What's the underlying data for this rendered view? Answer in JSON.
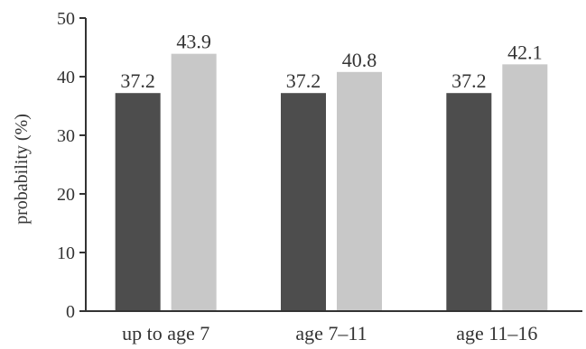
{
  "chart_data": {
    "type": "bar",
    "title": "",
    "xlabel": "",
    "ylabel": "probability (%)",
    "ylim": [
      0,
      50
    ],
    "yticks": [
      0,
      10,
      20,
      30,
      40,
      50
    ],
    "categories": [
      "up to age 7",
      "age 7–11",
      "age 11–16"
    ],
    "series": [
      {
        "values": [
          37.2,
          37.2,
          37.2
        ],
        "color": "#4d4d4d"
      },
      {
        "values": [
          43.9,
          40.8,
          42.1
        ],
        "color": "#c8c8c8"
      }
    ],
    "data_labels": [
      [
        "37.2",
        "37.2",
        "37.2"
      ],
      [
        "43.9",
        "40.8",
        "42.1"
      ]
    ],
    "grid": false,
    "legend": "none"
  }
}
